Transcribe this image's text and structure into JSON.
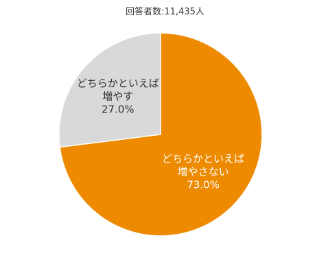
{
  "chart_data": {
    "type": "pie",
    "title": "回答者数:11,435人",
    "categories": [
      "どちらかといえば\n増やさない",
      "どちらかといえば\n増やす"
    ],
    "values": [
      73.0,
      27.0
    ],
    "value_labels": [
      "73.0%",
      "27.0%"
    ],
    "colors": [
      "#ee8a00",
      "#d9d9d9"
    ],
    "label_colors": [
      "#ffffff",
      "#333333"
    ]
  }
}
